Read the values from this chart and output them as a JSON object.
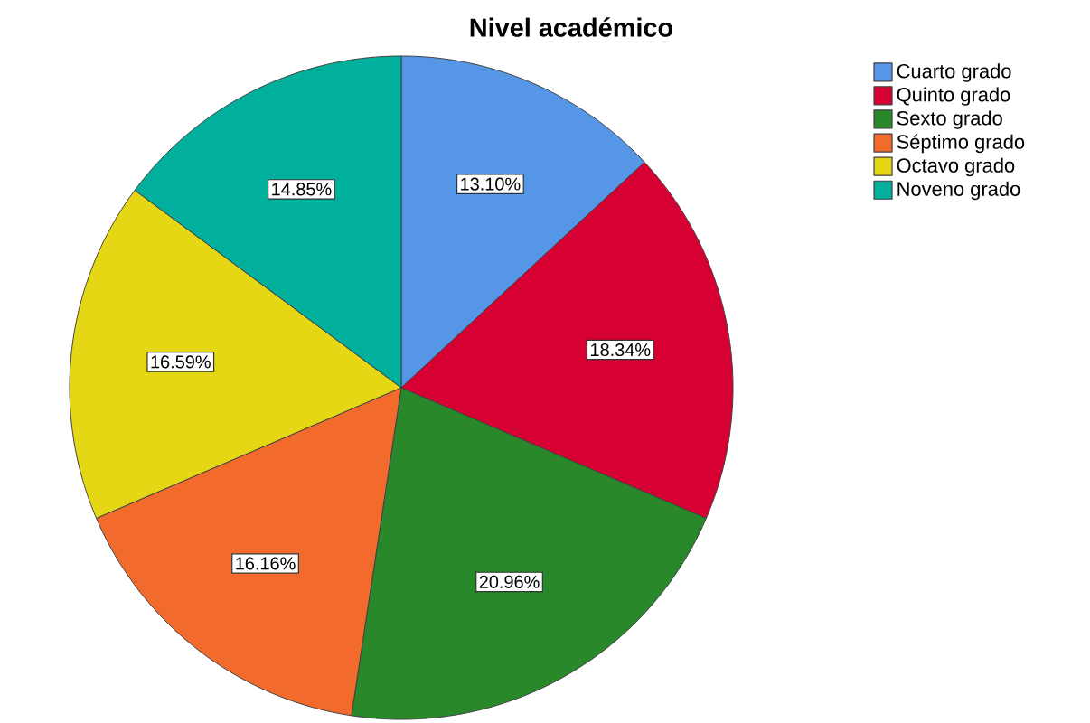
{
  "chart_data": {
    "type": "pie",
    "title": "Nivel académico",
    "categories": [
      "Cuarto grado",
      "Quinto grado",
      "Sexto grado",
      "Séptimo grado",
      "Octavo grado",
      "Noveno grado"
    ],
    "values": [
      13.1,
      18.34,
      20.96,
      16.16,
      16.59,
      14.85
    ],
    "colors": [
      "#5596e6",
      "#d60032",
      "#29882a",
      "#f26a2c",
      "#e6d714",
      "#00b09c"
    ],
    "value_labels": [
      "13.10%",
      "18.34%",
      "20.96%",
      "16.16%",
      "16.59%",
      "14.85%"
    ],
    "legend": "top right"
  }
}
